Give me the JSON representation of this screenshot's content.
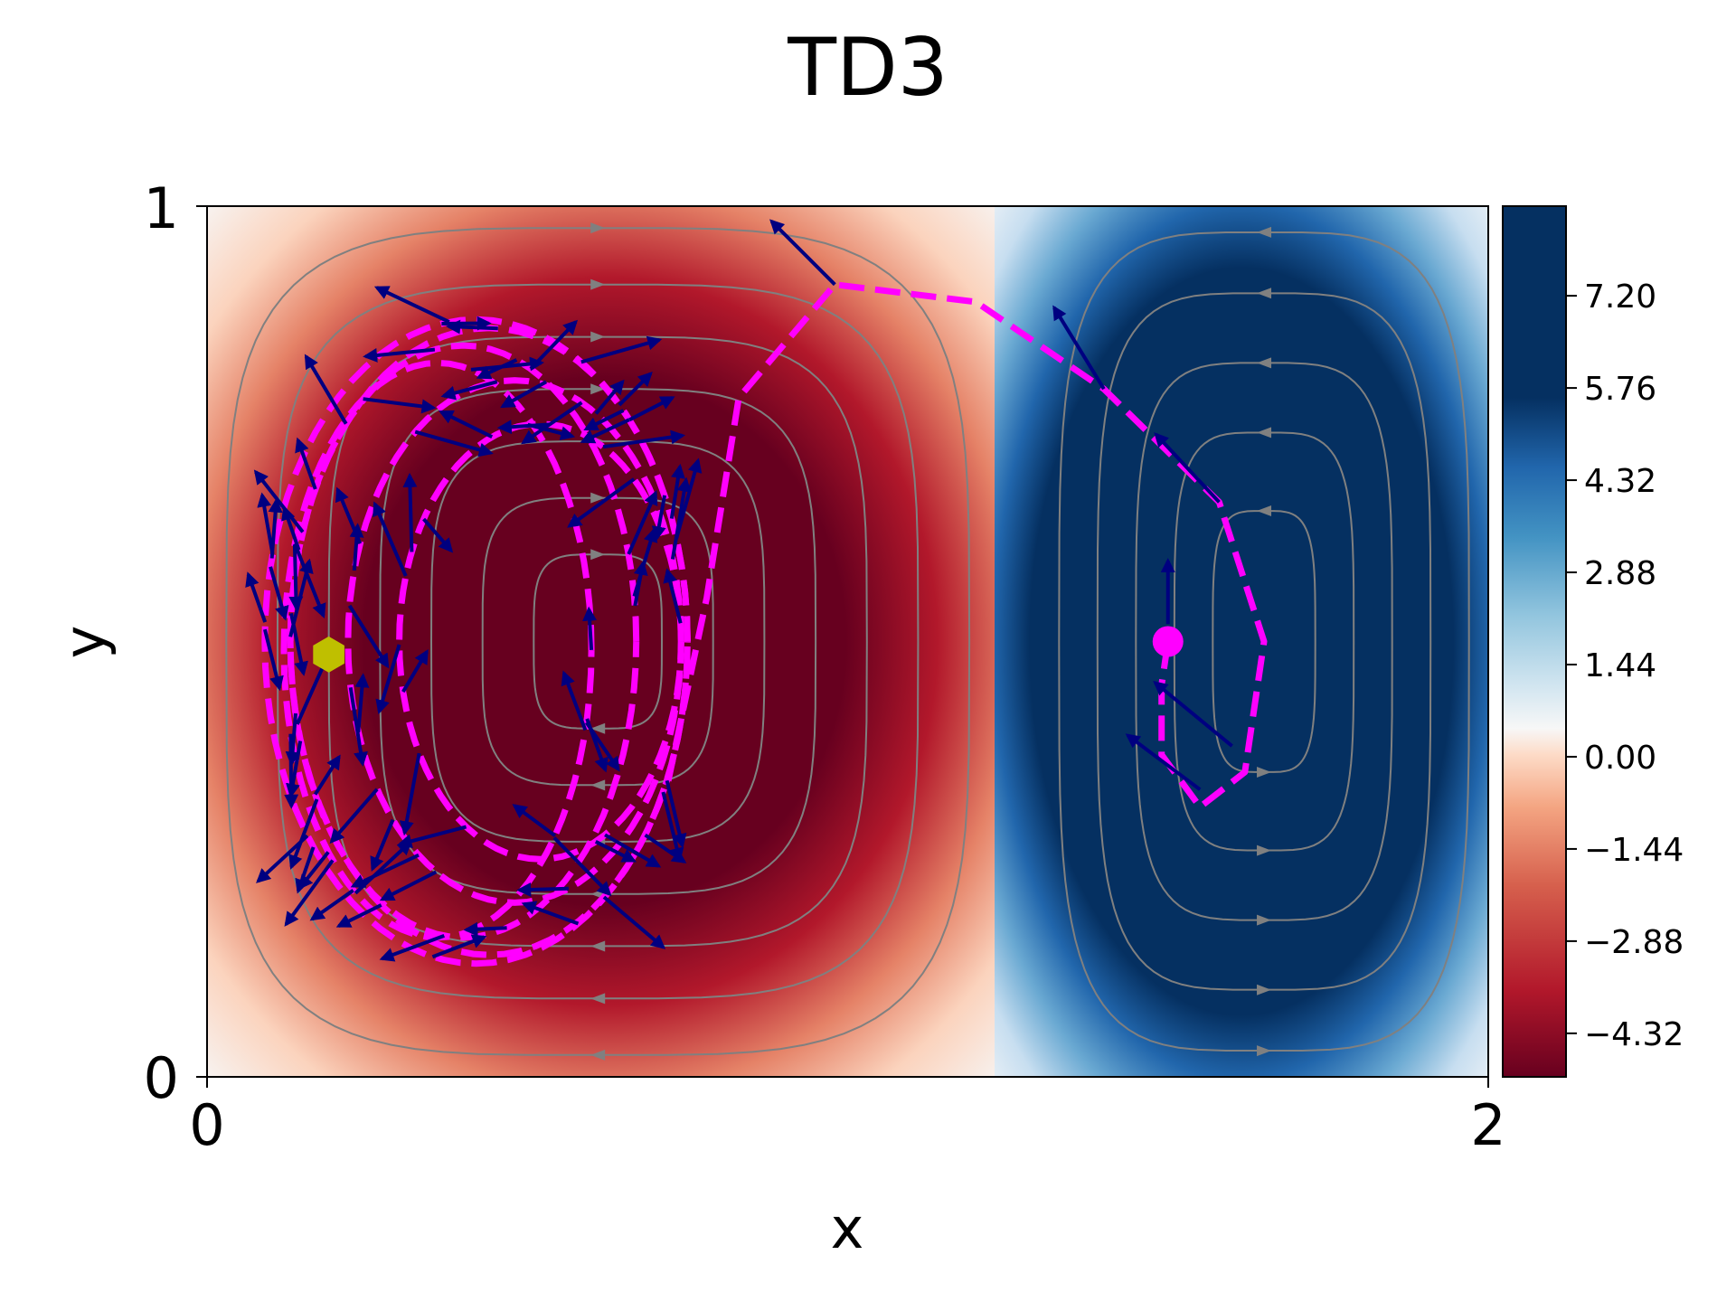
{
  "chart_data": {
    "type": "heatmap",
    "title": "TD3",
    "xlabel": "x",
    "ylabel": "y",
    "xlim": [
      0,
      2
    ],
    "ylim": [
      0,
      1
    ],
    "xticks": [
      "0",
      "2"
    ],
    "yticks": [
      "0",
      "1"
    ],
    "colormap": "RdBu",
    "colorbar": {
      "range": [
        -5.0,
        8.6
      ],
      "ticks": [
        7.2,
        5.76,
        4.32,
        2.88,
        1.44,
        0.0,
        -1.44,
        -2.88,
        -4.32
      ],
      "tick_labels": [
        "7.20",
        "5.76",
        "4.32",
        "2.88",
        "1.44",
        "0.00",
        "−1.44",
        "−2.88",
        "−4.32"
      ],
      "placement": "right"
    },
    "field": "double gyre vorticity: left cell negative (red), right cell positive (blue)",
    "streamline_color": "#808080",
    "trajectory_color": "#ff00ff",
    "arrow_color": "#000080",
    "markers": [
      {
        "name": "start",
        "shape": "hexagon",
        "color": "#bfbf00",
        "x": 0.19,
        "y": 0.485
      },
      {
        "name": "end",
        "shape": "circle",
        "color": "#ff00ff",
        "x": 1.5,
        "y": 0.5
      }
    ]
  }
}
